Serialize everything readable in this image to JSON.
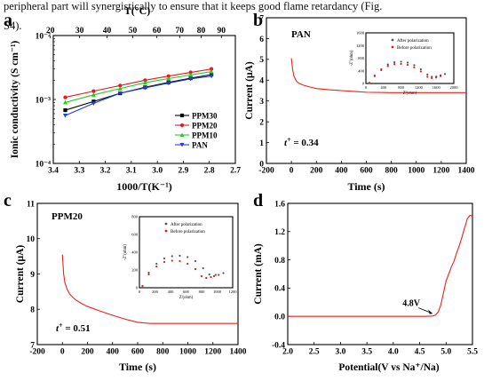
{
  "header_text": {
    "line1": "peripheral part will synergistically to ensure that it keeps good flame retardancy (Fig.",
    "line2": "S4)."
  },
  "colors": {
    "black": "#000000",
    "red": "#e41a1c",
    "green": "#22cc22",
    "blue": "#1f3fd6",
    "gray": "#555555",
    "raw_red": "#e8231f"
  },
  "chart_data": [
    {
      "panel": "a",
      "type": "line",
      "xlabel": "1000/T(K⁻¹)",
      "ylabel": "Ionic conductivity (S cm⁻¹)",
      "top_xlabel": "T(°C)",
      "xlim": [
        3.4,
        2.7
      ],
      "xticks": [
        "3.4",
        "3.3",
        "3.2",
        "3.1",
        "3.0",
        "2.9",
        "2.8",
        "2.7"
      ],
      "top_xticks": [
        "20",
        "30",
        "40",
        "50",
        "60",
        "70",
        "80",
        "90"
      ],
      "yscale": "log",
      "ylim": [
        0.0001,
        0.01
      ],
      "yticks": [
        "10⁻⁴",
        "10⁻³",
        "10⁻²"
      ],
      "legend": "center-right",
      "x": [
        3.354,
        3.245,
        3.143,
        3.047,
        2.957,
        2.872,
        2.792
      ],
      "series": [
        {
          "name": "PPM30",
          "marker": "square",
          "color": "#000000",
          "values": [
            0.00068,
            0.00093,
            0.00125,
            0.00155,
            0.00185,
            0.00215,
            0.00245
          ]
        },
        {
          "name": "PPM20",
          "marker": "circle",
          "color": "#e41a1c",
          "values": [
            0.00108,
            0.00135,
            0.00165,
            0.002,
            0.00232,
            0.00265,
            0.003
          ]
        },
        {
          "name": "PPM10",
          "marker": "triangle-up",
          "color": "#22cc22",
          "values": [
            0.0009,
            0.00118,
            0.00148,
            0.00183,
            0.00212,
            0.00242,
            0.00272
          ]
        },
        {
          "name": "PAN",
          "marker": "triangle-down",
          "color": "#1f3fd6",
          "values": [
            0.00056,
            0.00087,
            0.00125,
            0.00152,
            0.0018,
            0.0021,
            0.00232
          ]
        }
      ]
    },
    {
      "panel": "b",
      "type": "line",
      "name_label": "PAN",
      "xlabel": "Time (s)",
      "ylabel": "Current (μA)",
      "xlim": [
        -200,
        1400
      ],
      "ylim": [
        0,
        7
      ],
      "xticks": [
        "-200",
        "0",
        "200",
        "400",
        "600",
        "800",
        "1000",
        "1200",
        "1400"
      ],
      "yticks": [
        "0",
        "1",
        "2",
        "3",
        "4",
        "5",
        "6",
        "7"
      ],
      "annotation_italic": "t",
      "annotation_sup": "+",
      "annotation_rest": " = 0.34",
      "series": [
        {
          "name": "",
          "color": "#e8231f",
          "x": [
            0,
            10,
            20,
            40,
            60,
            100,
            150,
            200,
            300,
            400,
            500,
            600,
            800,
            1000,
            1200,
            1400
          ],
          "values": [
            5.05,
            4.5,
            4.2,
            3.95,
            3.85,
            3.75,
            3.67,
            3.6,
            3.54,
            3.5,
            3.46,
            3.42,
            3.4,
            3.4,
            3.4,
            3.4
          ]
        }
      ],
      "inset": {
        "xlabel": "Z'(ohm)",
        "ylabel": "-Z''(ohm)",
        "xlim": [
          0,
          2000
        ],
        "ylim": [
          0,
          1600
        ],
        "xticks": [
          "0",
          "400",
          "800",
          "1200",
          "1600",
          "2000"
        ],
        "yticks": [
          "0",
          "400",
          "800",
          "1200",
          "1600"
        ],
        "series": [
          {
            "name": "After polarization",
            "color": "#555555",
            "x": [
              80,
              200,
              350,
              500,
              650,
              800,
              950,
              1100,
              1250,
              1400,
              1500,
              1600,
              1700,
              1800
            ],
            "values": [
              20,
              250,
              450,
              600,
              670,
              690,
              660,
              580,
              450,
              280,
              210,
              220,
              260,
              300
            ]
          },
          {
            "name": "Before polarization",
            "color": "#e41a1c",
            "x": [
              80,
              200,
              350,
              500,
              650,
              800,
              950,
              1100,
              1250,
              1400,
              1500,
              1600,
              1700
            ],
            "values": [
              20,
              230,
              420,
              550,
              610,
              620,
              590,
              510,
              380,
              210,
              170,
              190,
              230
            ]
          }
        ]
      }
    },
    {
      "panel": "c",
      "type": "line",
      "name_label": "PPM20",
      "xlabel": "Time (s)",
      "ylabel": "Current (μA)",
      "xlim": [
        -200,
        1400
      ],
      "ylim": [
        7,
        11
      ],
      "xticks": [
        "-200",
        "0",
        "200",
        "400",
        "600",
        "800",
        "1000",
        "1200",
        "1400"
      ],
      "yticks": [
        "7",
        "8",
        "9",
        "10",
        "11"
      ],
      "annotation_italic": "t",
      "annotation_sup": "+",
      "annotation_rest": " = 0.51",
      "series": [
        {
          "name": "",
          "color": "#e8231f",
          "x": [
            0,
            10,
            20,
            40,
            60,
            100,
            150,
            200,
            300,
            400,
            500,
            600,
            700,
            800,
            1000,
            1200,
            1400
          ],
          "values": [
            9.55,
            9.0,
            8.75,
            8.55,
            8.42,
            8.28,
            8.17,
            8.08,
            7.95,
            7.83,
            7.72,
            7.63,
            7.6,
            7.6,
            7.6,
            7.6,
            7.6
          ]
        }
      ],
      "inset": {
        "xlabel": "Z'(ohm)",
        "ylabel": "-Z''(ohm)",
        "xlim": [
          0,
          1200
        ],
        "ylim": [
          0,
          800
        ],
        "xticks": [
          "0",
          "200",
          "400",
          "600",
          "800",
          "1000",
          "1200"
        ],
        "yticks": [
          "0",
          "200",
          "400",
          "600",
          "800"
        ],
        "series": [
          {
            "name": "After polarization",
            "color": "#555555",
            "x": [
              40,
              120,
              220,
              320,
              420,
              520,
              620,
              720,
              820,
              900,
              960,
              1020,
              1080
            ],
            "values": [
              20,
              170,
              270,
              330,
              355,
              360,
              345,
              300,
              220,
              150,
              130,
              145,
              165
            ]
          },
          {
            "name": "Before polarization",
            "color": "#e41a1c",
            "x": [
              40,
              120,
              220,
              320,
              420,
              520,
              620,
              720,
              800,
              860,
              920,
              980
            ],
            "values": [
              20,
              150,
              240,
              290,
              305,
              300,
              270,
              210,
              130,
              110,
              120,
              145
            ]
          }
        ]
      }
    },
    {
      "panel": "d",
      "type": "line",
      "xlabel": "Potential(V vs Na⁺/Na)",
      "ylabel": "Current (mA)",
      "xlim": [
        2.0,
        5.5
      ],
      "ylim": [
        -0.4,
        1.6
      ],
      "xticks": [
        "2.0",
        "2.5",
        "3.0",
        "3.5",
        "4.0",
        "4.5",
        "5.0",
        "5.5"
      ],
      "yticks": [
        "-0.4",
        "0.0",
        "0.4",
        "0.8",
        "1.2",
        "1.6"
      ],
      "annotation": "4.8V",
      "series": [
        {
          "name": "",
          "color": "#e8231f",
          "x": [
            2.0,
            3.0,
            4.0,
            4.6,
            4.75,
            4.8,
            4.85,
            4.9,
            4.95,
            5.0,
            5.05,
            5.1,
            5.15,
            5.2,
            5.25,
            5.3,
            5.35,
            5.4,
            5.45,
            5.5
          ],
          "values": [
            0.0,
            0.0,
            0.0,
            0.0,
            0.005,
            0.02,
            0.06,
            0.16,
            0.33,
            0.5,
            0.6,
            0.7,
            0.78,
            0.9,
            1.0,
            1.12,
            1.25,
            1.38,
            1.43,
            1.42
          ]
        }
      ]
    }
  ]
}
